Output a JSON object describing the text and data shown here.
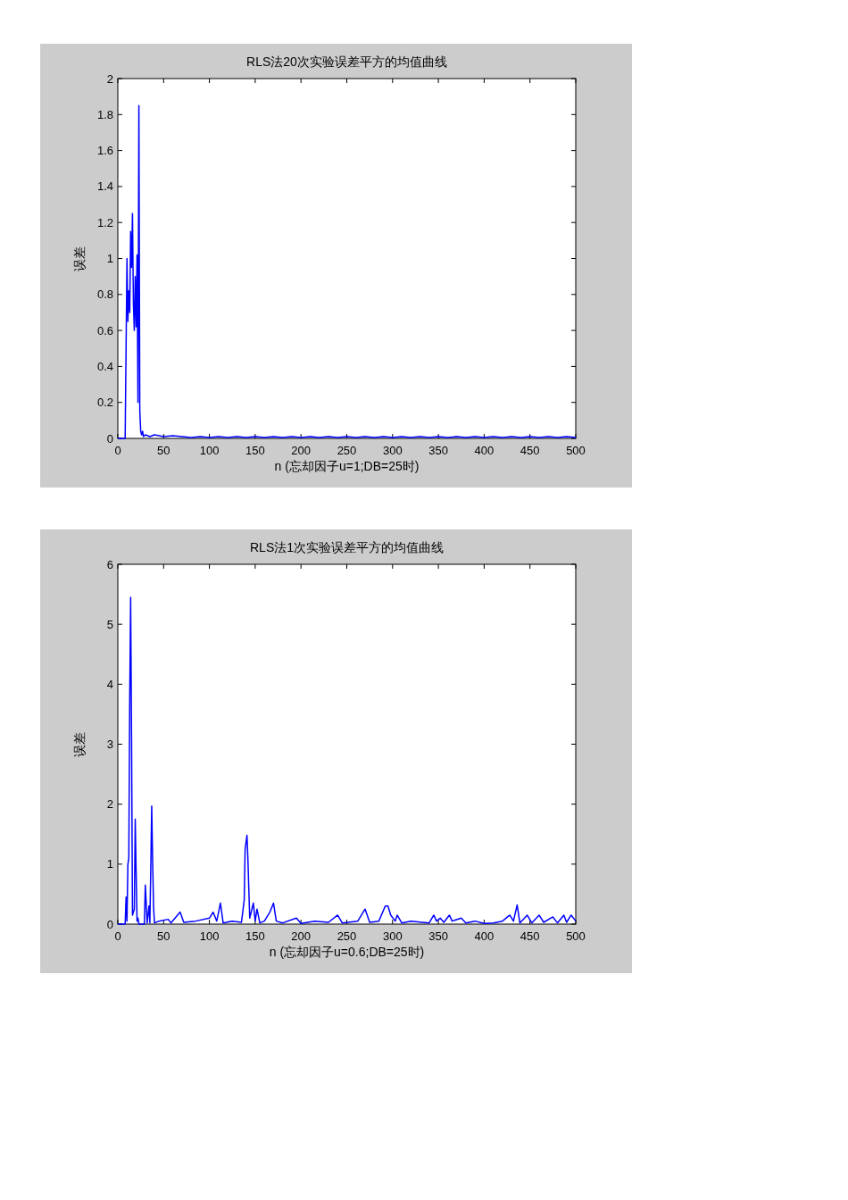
{
  "chart_data": [
    {
      "type": "line",
      "title": "RLS法20次实验误差平方的均值曲线",
      "xlabel": "n (忘却因子u=1;DB=25时)",
      "ylabel": "误差",
      "xlim": [
        0,
        500
      ],
      "ylim": [
        0,
        2
      ],
      "xticks": [
        0,
        50,
        100,
        150,
        200,
        250,
        300,
        350,
        400,
        450,
        500
      ],
      "yticks": [
        0,
        0.2,
        0.4,
        0.6,
        0.8,
        1,
        1.2,
        1.4,
        1.6,
        1.8,
        2
      ],
      "x": [
        0,
        8,
        9,
        10,
        11,
        12,
        13,
        14,
        15,
        16,
        17,
        18,
        19,
        20,
        21,
        22,
        23,
        24,
        25,
        26,
        27,
        28,
        30,
        35,
        40,
        50,
        60,
        70,
        80,
        90,
        100,
        110,
        120,
        130,
        140,
        150,
        160,
        170,
        180,
        190,
        200,
        210,
        220,
        230,
        240,
        250,
        260,
        270,
        280,
        290,
        300,
        310,
        320,
        330,
        340,
        350,
        360,
        370,
        380,
        390,
        400,
        410,
        420,
        430,
        440,
        450,
        460,
        470,
        480,
        490,
        500
      ],
      "series": [
        {
          "color": "#0000ff",
          "values": [
            0,
            0,
            0.5,
            1.0,
            0.65,
            0.82,
            0.7,
            1.15,
            0.95,
            1.25,
            0.75,
            0.6,
            0.9,
            0.62,
            1.02,
            0.2,
            1.85,
            0.15,
            0.04,
            0.02,
            0.04,
            0.01,
            0.02,
            0.01,
            0.02,
            0.01,
            0.015,
            0.01,
            0.005,
            0.01,
            0.005,
            0.01,
            0.005,
            0.01,
            0.005,
            0.01,
            0.005,
            0.01,
            0.005,
            0.01,
            0.005,
            0.01,
            0.005,
            0.01,
            0.005,
            0.01,
            0.005,
            0.01,
            0.005,
            0.01,
            0.005,
            0.01,
            0.005,
            0.01,
            0.005,
            0.01,
            0.005,
            0.01,
            0.005,
            0.01,
            0.005,
            0.01,
            0.005,
            0.01,
            0.005,
            0.01,
            0.005,
            0.01,
            0.005,
            0.01,
            0.005
          ]
        }
      ]
    },
    {
      "type": "line",
      "title": "RLS法1次实验误差平方的均值曲线",
      "xlabel": "n  (忘却因子u=0.6;DB=25时)",
      "ylabel": "误差",
      "xlim": [
        0,
        500
      ],
      "ylim": [
        0,
        6
      ],
      "xticks": [
        0,
        50,
        100,
        150,
        200,
        250,
        300,
        350,
        400,
        450,
        500
      ],
      "yticks": [
        0,
        1,
        2,
        3,
        4,
        5,
        6
      ],
      "x": [
        0,
        8,
        9,
        10,
        11,
        12,
        13,
        14,
        15,
        16,
        17,
        18,
        19,
        20,
        21,
        22,
        23,
        29,
        30,
        31,
        32,
        34,
        35,
        36,
        37,
        38,
        39,
        40,
        45,
        55,
        58,
        68,
        72,
        85,
        100,
        104,
        108,
        112,
        115,
        125,
        135,
        138,
        139,
        141,
        142,
        144,
        148,
        150,
        152,
        155,
        160,
        166,
        170,
        173,
        180,
        195,
        200,
        215,
        230,
        240,
        245,
        262,
        270,
        275,
        285,
        292,
        295,
        298,
        303,
        305,
        310,
        320,
        340,
        345,
        348,
        352,
        356,
        362,
        365,
        375,
        380,
        390,
        400,
        410,
        420,
        428,
        432,
        436,
        439,
        447,
        452,
        460,
        465,
        475,
        480,
        487,
        490,
        495,
        500
      ],
      "series": [
        {
          "color": "#0000ff",
          "values": [
            0,
            0,
            0.45,
            0.05,
            1.0,
            1.1,
            3.75,
            5.45,
            3.1,
            0.15,
            0.2,
            0.25,
            1.75,
            0.85,
            0.05,
            0.1,
            0,
            0,
            0.65,
            0.35,
            0.02,
            0.3,
            0.02,
            0.95,
            1.97,
            1.05,
            0.3,
            0.02,
            0.05,
            0.08,
            0.02,
            0.2,
            0.03,
            0.05,
            0.1,
            0.2,
            0.05,
            0.35,
            0.02,
            0.05,
            0.03,
            0.4,
            1.25,
            1.48,
            1.1,
            0.1,
            0.35,
            0.05,
            0.25,
            0.02,
            0.05,
            0.2,
            0.35,
            0.05,
            0.02,
            0.1,
            0.01,
            0.05,
            0.03,
            0.15,
            0.02,
            0.05,
            0.25,
            0.03,
            0.05,
            0.3,
            0.3,
            0.15,
            0.05,
            0.15,
            0.02,
            0.05,
            0.02,
            0.15,
            0.05,
            0.1,
            0.03,
            0.15,
            0.05,
            0.1,
            0.02,
            0.05,
            0.01,
            0.02,
            0.05,
            0.15,
            0.05,
            0.32,
            0.02,
            0.15,
            0.02,
            0.15,
            0.03,
            0.12,
            0.02,
            0.15,
            0.03,
            0.15,
            0.05
          ]
        }
      ]
    }
  ]
}
